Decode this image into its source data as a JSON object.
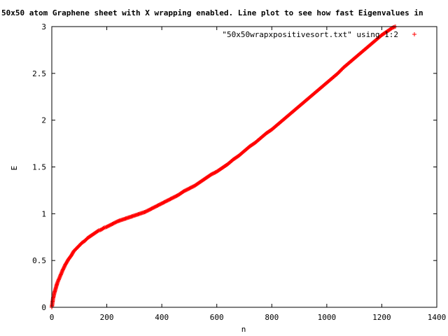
{
  "chart_data": {
    "type": "scatter",
    "title": "50x50 atom Graphene sheet with X wrapping enabled. Line plot to see how fast Eigenvalues in",
    "xlabel": "n",
    "ylabel": "E",
    "xlim": [
      0,
      1400
    ],
    "ylim": [
      0,
      3
    ],
    "xticks": [
      0,
      200,
      400,
      600,
      800,
      1000,
      1200,
      1400
    ],
    "yticks": [
      0,
      0.5,
      1,
      1.5,
      2,
      2.5,
      3
    ],
    "xtick_labels": [
      "0",
      "200",
      "400",
      "600",
      "800",
      "1000",
      "1200",
      "1400"
    ],
    "ytick_labels": [
      "0",
      "0.5",
      "1",
      "1.5",
      "2",
      "2.5",
      "3"
    ],
    "legend_position": "top-right",
    "grid": false,
    "series": [
      {
        "name": "\"50x50wrapxpositivesort.txt\" using 1:2",
        "color": "#ff0000",
        "marker": "plus",
        "x": [
          0,
          5,
          10,
          20,
          30,
          40,
          50,
          60,
          70,
          80,
          90,
          100,
          110,
          120,
          130,
          140,
          150,
          160,
          170,
          180,
          190,
          200,
          220,
          240,
          260,
          280,
          300,
          320,
          340,
          360,
          380,
          400,
          420,
          440,
          460,
          480,
          500,
          520,
          540,
          560,
          580,
          600,
          620,
          640,
          660,
          680,
          700,
          720,
          740,
          760,
          780,
          800,
          820,
          840,
          860,
          880,
          900,
          920,
          940,
          960,
          980,
          1000,
          1020,
          1040,
          1060,
          1080,
          1100,
          1120,
          1140,
          1160,
          1180,
          1200,
          1220,
          1240,
          1250
        ],
        "y": [
          0.0,
          0.1,
          0.16,
          0.26,
          0.33,
          0.4,
          0.46,
          0.51,
          0.55,
          0.6,
          0.63,
          0.66,
          0.69,
          0.71,
          0.74,
          0.76,
          0.78,
          0.8,
          0.82,
          0.83,
          0.85,
          0.86,
          0.89,
          0.92,
          0.94,
          0.96,
          0.98,
          1.0,
          1.02,
          1.05,
          1.08,
          1.11,
          1.14,
          1.17,
          1.2,
          1.24,
          1.27,
          1.3,
          1.34,
          1.38,
          1.42,
          1.45,
          1.49,
          1.53,
          1.58,
          1.62,
          1.67,
          1.72,
          1.76,
          1.81,
          1.86,
          1.9,
          1.95,
          2.0,
          2.05,
          2.1,
          2.15,
          2.2,
          2.25,
          2.3,
          2.35,
          2.4,
          2.45,
          2.5,
          2.56,
          2.61,
          2.66,
          2.71,
          2.76,
          2.81,
          2.86,
          2.91,
          2.95,
          2.99,
          3.0
        ]
      }
    ]
  }
}
